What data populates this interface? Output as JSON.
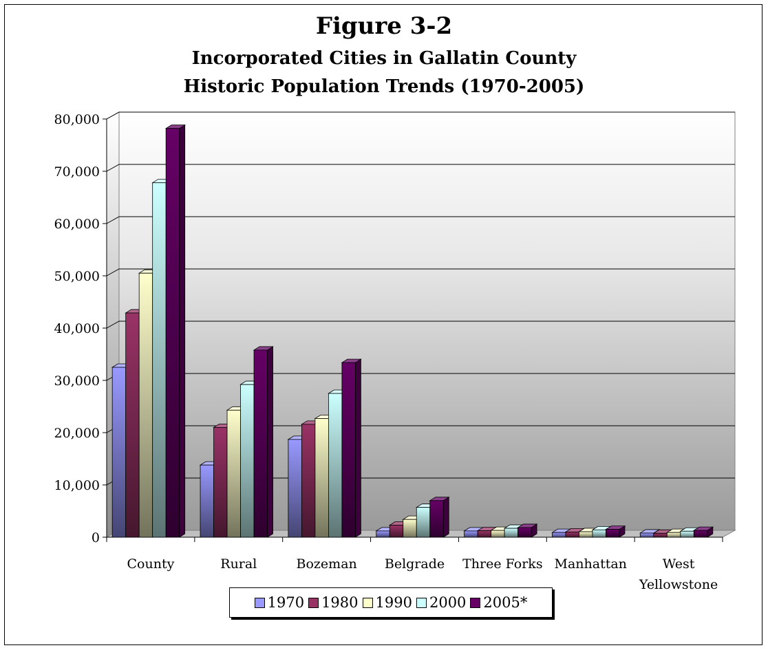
{
  "chart_data": {
    "type": "bar",
    "title": "Figure 3-2",
    "subtitle_lines": [
      "Incorporated Cities in Gallatin County",
      "Historic Population Trends (1970-2005)"
    ],
    "categories": [
      "County",
      "Rural",
      "Bozeman",
      "Belgrade",
      "Three Forks",
      "Manhattan",
      "West Yellowstone"
    ],
    "series": [
      {
        "name": "1970",
        "color": "#9999ff",
        "values": [
          32500,
          13800,
          18700,
          1200,
          1200,
          900,
          800
        ]
      },
      {
        "name": "1980",
        "color": "#993366",
        "values": [
          42900,
          21000,
          21600,
          2300,
          1250,
          1000,
          750
        ]
      },
      {
        "name": "1990",
        "color": "#ffffcc",
        "values": [
          50500,
          24300,
          22700,
          3400,
          1300,
          1050,
          900
        ]
      },
      {
        "name": "2000",
        "color": "#ccffff",
        "values": [
          67800,
          29200,
          27500,
          5700,
          1700,
          1400,
          1150
        ]
      },
      {
        "name": "2005*",
        "color": "#660066",
        "values": [
          78200,
          35800,
          33400,
          7000,
          1850,
          1500,
          1300
        ]
      }
    ],
    "y_ticks": [
      "0",
      "10,000",
      "20,000",
      "30,000",
      "40,000",
      "50,000",
      "60,000",
      "70,000",
      "80,000"
    ],
    "ylim": [
      0,
      80000
    ],
    "grid": true,
    "legend_position": "bottom",
    "xlabel": "",
    "ylabel": ""
  }
}
